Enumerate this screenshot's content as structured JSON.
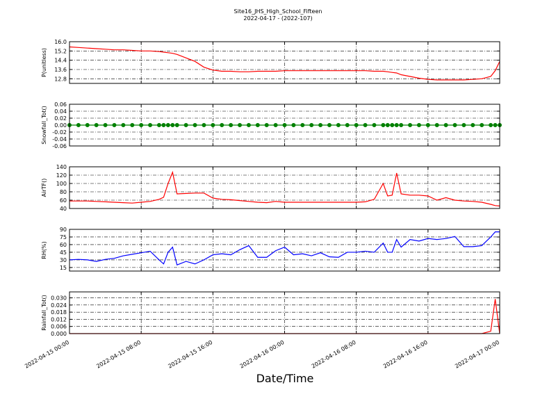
{
  "chart_data": [
    {
      "type": "line",
      "title": "Site16_JHS_High_School_Fifteen",
      "subtitle": "2022-04-17 - (2022-107)",
      "ylabel": "P(unitless)",
      "ylim": [
        12.4,
        16.0
      ],
      "yticks": [
        12.8,
        13.6,
        14.4,
        15.2,
        {
          "value": 16,
          "label": "16.0"
        }
      ],
      "grid": true,
      "series": [
        {
          "color": "#ff0000",
          "values": [
            15.55,
            15.5,
            15.45,
            15.4,
            15.35,
            15.3,
            15.3,
            15.25,
            15.2,
            15.2,
            15.15,
            15.1,
            15.05,
            15.0,
            14.9,
            14.6,
            14.3,
            13.8,
            13.55,
            13.45,
            13.45,
            13.4,
            13.4,
            13.45,
            13.45,
            13.45,
            13.5,
            13.5,
            13.5,
            13.5,
            13.5,
            13.5,
            13.5,
            13.5,
            13.5,
            13.5,
            13.45,
            13.45,
            13.4,
            13.35,
            13.3,
            13.15,
            13.0,
            12.85,
            12.75,
            12.7,
            12.7,
            12.7,
            12.7,
            12.75,
            12.8,
            13.0,
            13.5,
            14.3
          ]
        }
      ]
    },
    {
      "type": "line",
      "ylabel": "Snowfall_Tot()",
      "ylim": [
        -0.06,
        0.06
      ],
      "yticks": [
        -0.06,
        -0.04,
        -0.02,
        {
          "value": 0,
          "label": "0.00"
        },
        0.02,
        0.04,
        0.06
      ],
      "grid": true,
      "series": [
        {
          "color": "#008000",
          "marker": "o",
          "values": [
            0,
            0,
            0,
            0,
            0,
            0,
            0,
            0,
            0,
            0,
            0,
            0,
            0,
            0,
            0,
            0,
            0,
            0,
            0,
            0,
            0,
            0,
            0,
            0,
            0,
            0,
            0,
            0,
            0,
            0,
            0,
            0,
            0,
            0,
            0,
            0,
            0,
            0,
            0,
            0,
            0,
            0,
            0,
            0,
            0,
            0,
            0,
            0,
            0,
            0,
            0,
            0,
            0,
            0
          ]
        }
      ]
    },
    {
      "type": "line",
      "ylabel": "AirTF()",
      "ylim": [
        40,
        140
      ],
      "yticks": [
        40,
        60,
        80,
        100,
        120,
        140
      ],
      "grid": true,
      "series": [
        {
          "color": "#ff0000",
          "values": [
            58,
            58,
            58,
            57,
            56,
            55,
            54,
            53,
            55,
            57,
            62,
            67,
            100,
            127,
            75,
            76,
            77,
            77,
            65,
            62,
            61,
            59,
            57,
            55,
            54,
            57,
            55,
            55,
            55,
            55,
            55,
            55,
            55,
            55,
            55,
            56,
            62,
            100,
            70,
            72,
            125,
            75,
            72,
            72,
            70,
            60,
            66,
            60,
            58,
            57,
            55,
            50,
            47,
            46
          ]
        }
      ]
    },
    {
      "type": "line",
      "ylabel": "RH(%)",
      "ylim": [
        8,
        90
      ],
      "yticks": [
        15,
        30,
        45,
        60,
        75,
        90
      ],
      "grid": true,
      "series": [
        {
          "color": "#0000ff",
          "values": [
            30,
            31,
            30,
            27,
            31,
            33,
            38,
            41,
            44,
            47,
            30,
            22,
            45,
            55,
            20,
            27,
            22,
            30,
            40,
            42,
            40,
            50,
            58,
            35,
            35,
            48,
            55,
            40,
            42,
            38,
            44,
            36,
            35,
            45,
            45,
            47,
            45,
            63,
            45,
            45,
            70,
            55,
            70,
            67,
            72,
            70,
            72,
            76,
            56,
            56,
            58,
            75,
            85,
            85
          ]
        }
      ]
    },
    {
      "type": "line",
      "ylabel": "Rainfall_Tot()",
      "xlabel": "Date/Time",
      "ylim": [
        0,
        0.035
      ],
      "yticks": [
        {
          "value": 0,
          "label": "0.000"
        },
        {
          "value": 0.006,
          "label": "0.006"
        },
        {
          "value": 0.012,
          "label": "0.012"
        },
        {
          "value": 0.018,
          "label": "0.018"
        },
        {
          "value": 0.024,
          "label": "0.024"
        },
        {
          "value": 0.03,
          "label": "0.030"
        }
      ],
      "grid": true,
      "xlim": [
        "2022-04-15 00:00",
        "2022-04-17 00:00"
      ],
      "xticks": [
        "2022-04-15 00:00",
        "2022-04-15 08:00",
        "2022-04-15 16:00",
        "2022-04-16 00:00",
        "2022-04-16 08:00",
        "2022-04-16 16:00",
        "2022-04-17 00:00"
      ],
      "x": [
        "2022-04-15 00:00",
        "2022-04-15 01:00",
        "2022-04-15 02:00",
        "2022-04-15 03:00",
        "2022-04-15 04:00",
        "2022-04-15 05:00",
        "2022-04-15 06:00",
        "2022-04-15 07:00",
        "2022-04-15 08:00",
        "2022-04-15 09:00",
        "2022-04-15 10:00",
        "2022-04-15 10:30",
        "2022-04-15 11:00",
        "2022-04-15 11:30",
        "2022-04-15 12:00",
        "2022-04-15 13:00",
        "2022-04-15 14:00",
        "2022-04-15 15:00",
        "2022-04-15 16:00",
        "2022-04-15 17:00",
        "2022-04-15 18:00",
        "2022-04-15 19:00",
        "2022-04-15 20:00",
        "2022-04-15 21:00",
        "2022-04-15 22:00",
        "2022-04-15 23:00",
        "2022-04-16 00:00",
        "2022-04-16 01:00",
        "2022-04-16 02:00",
        "2022-04-16 03:00",
        "2022-04-16 04:00",
        "2022-04-16 05:00",
        "2022-04-16 06:00",
        "2022-04-16 07:00",
        "2022-04-16 08:00",
        "2022-04-16 09:00",
        "2022-04-16 10:00",
        "2022-04-16 11:00",
        "2022-04-16 11:30",
        "2022-04-16 12:00",
        "2022-04-16 12:30",
        "2022-04-16 13:00",
        "2022-04-16 14:00",
        "2022-04-16 15:00",
        "2022-04-16 16:00",
        "2022-04-16 17:00",
        "2022-04-16 18:00",
        "2022-04-16 19:00",
        "2022-04-16 20:00",
        "2022-04-16 21:00",
        "2022-04-16 22:00",
        "2022-04-16 23:00",
        "2022-04-16 23:30",
        "2022-04-17 00:00"
      ],
      "series": [
        {
          "color": "#ff0000",
          "values": [
            0,
            0,
            0,
            0,
            0,
            0,
            0,
            0,
            0,
            0,
            0,
            0,
            0,
            0,
            0,
            0,
            0,
            0,
            0,
            0,
            0,
            0,
            0,
            0,
            0,
            0,
            0,
            0,
            0,
            0,
            0,
            0,
            0,
            0,
            0,
            0,
            0,
            0,
            0,
            0,
            0,
            0,
            0,
            0,
            0,
            0,
            0,
            0,
            0,
            0,
            0,
            0.002,
            0.029,
            0
          ]
        }
      ]
    }
  ]
}
